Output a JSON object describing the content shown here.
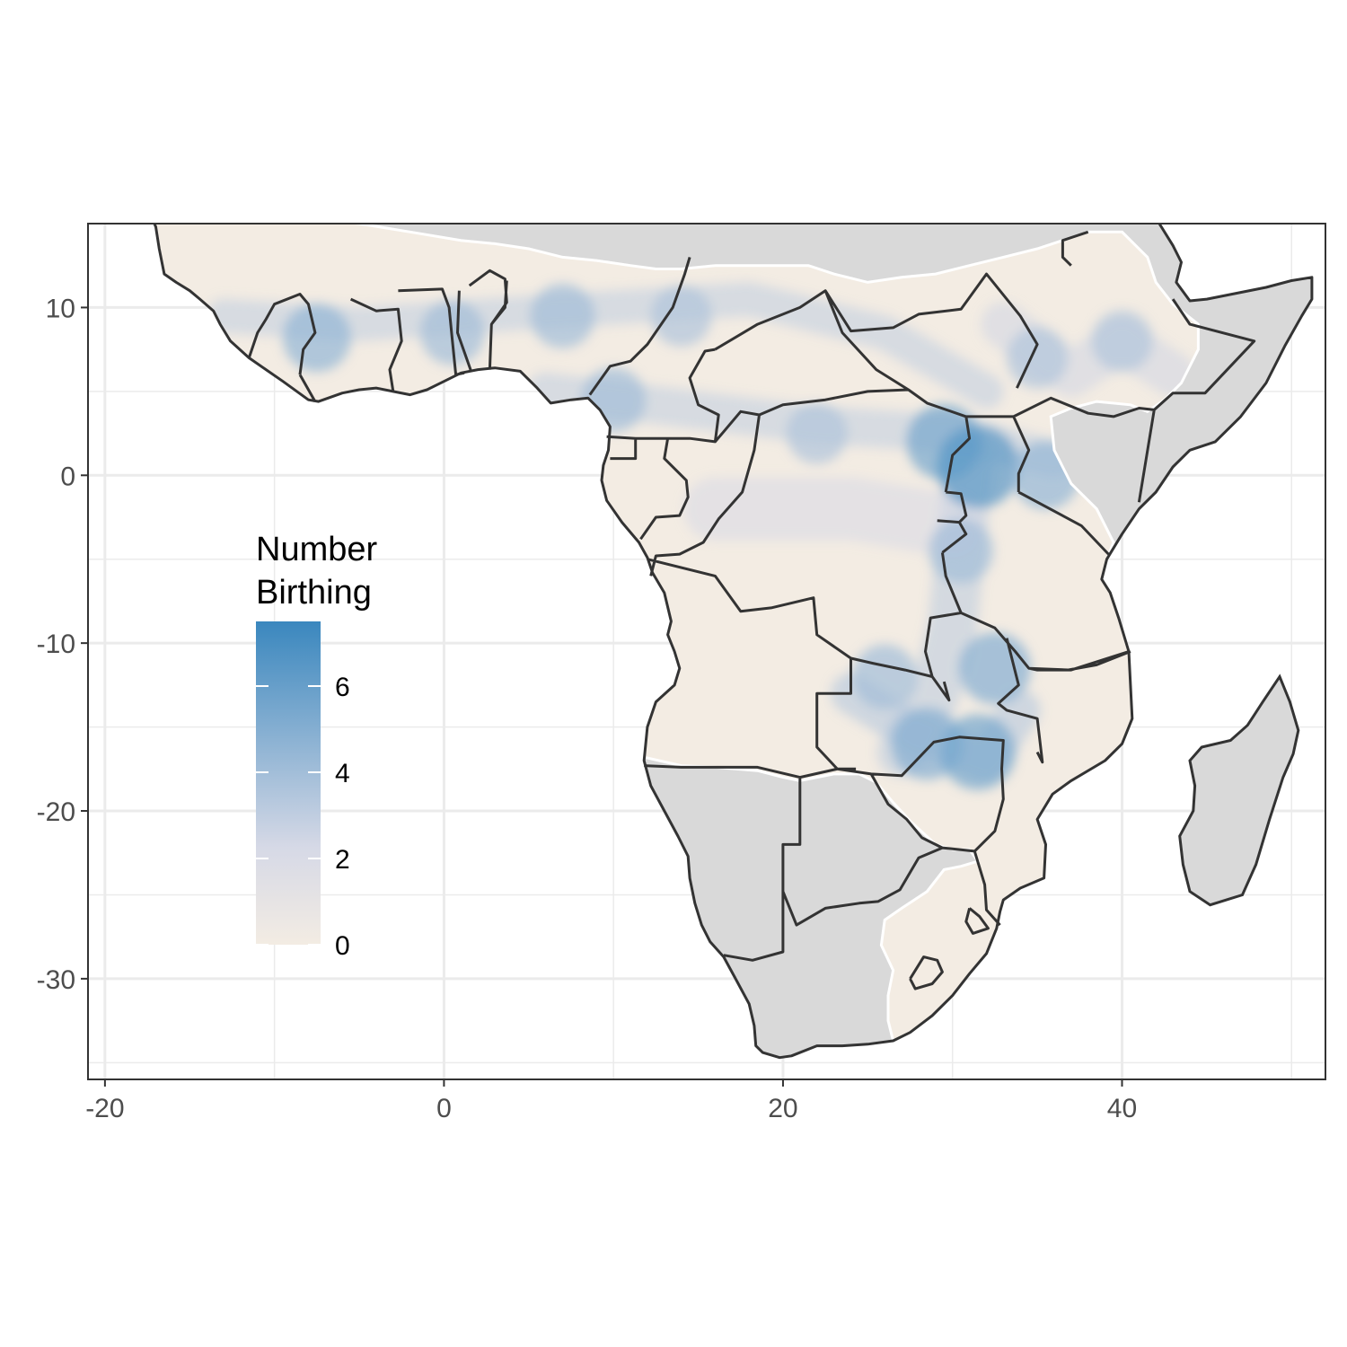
{
  "chart_data": {
    "type": "heatmap",
    "title": "",
    "xlabel": "",
    "ylabel": "",
    "xlim": [
      -21,
      52
    ],
    "ylim": [
      -36,
      15
    ],
    "x_ticks": [
      -20,
      0,
      20,
      40
    ],
    "y_ticks": [
      10,
      0,
      -10,
      -20,
      -30
    ],
    "x_tick_labels": [
      "-20",
      "0",
      "20",
      "40"
    ],
    "y_tick_labels": [
      "10",
      "0",
      "-10",
      "-20",
      "-30"
    ],
    "grid": true,
    "legend": {
      "title_lines": [
        "Number",
        "Birthing"
      ],
      "placement": "left-inside",
      "range": [
        0,
        7.5
      ],
      "ticks": [
        0,
        2,
        4,
        6
      ],
      "tick_labels": [
        "0",
        "2",
        "4",
        "6"
      ],
      "color_low": "#f3ece3",
      "color_mid": "#d6d9e6",
      "color_high": "#3a87be"
    },
    "colors": {
      "no_data_land": "#d9d9d9",
      "border": "#333333",
      "coverage_edge": "#ffffff",
      "ocean": "#ffffff"
    },
    "hotspots": [
      {
        "lon": -7.5,
        "lat": 8.2,
        "value": 4.5
      },
      {
        "lon": 0.5,
        "lat": 8.5,
        "value": 4.0
      },
      {
        "lon": 7.0,
        "lat": 9.5,
        "value": 4.0
      },
      {
        "lon": 14.0,
        "lat": 9.5,
        "value": 3.5
      },
      {
        "lon": 10.0,
        "lat": 4.5,
        "value": 4.0
      },
      {
        "lon": 22.0,
        "lat": 2.5,
        "value": 3.5
      },
      {
        "lon": 29.5,
        "lat": 2.0,
        "value": 5.5
      },
      {
        "lon": 31.5,
        "lat": 0.5,
        "value": 6.5
      },
      {
        "lon": 35.5,
        "lat": 0.0,
        "value": 4.5
      },
      {
        "lon": 30.5,
        "lat": -4.5,
        "value": 4.0
      },
      {
        "lon": 32.5,
        "lat": -11.5,
        "value": 5.0
      },
      {
        "lon": 28.5,
        "lat": -16.0,
        "value": 5.0
      },
      {
        "lon": 31.5,
        "lat": -16.5,
        "value": 5.5
      },
      {
        "lon": 26.0,
        "lat": -12.0,
        "value": 4.0
      },
      {
        "lon": 40.0,
        "lat": 8.0,
        "value": 3.5
      },
      {
        "lon": 35.0,
        "lat": 7.0,
        "value": 3.5
      }
    ]
  }
}
